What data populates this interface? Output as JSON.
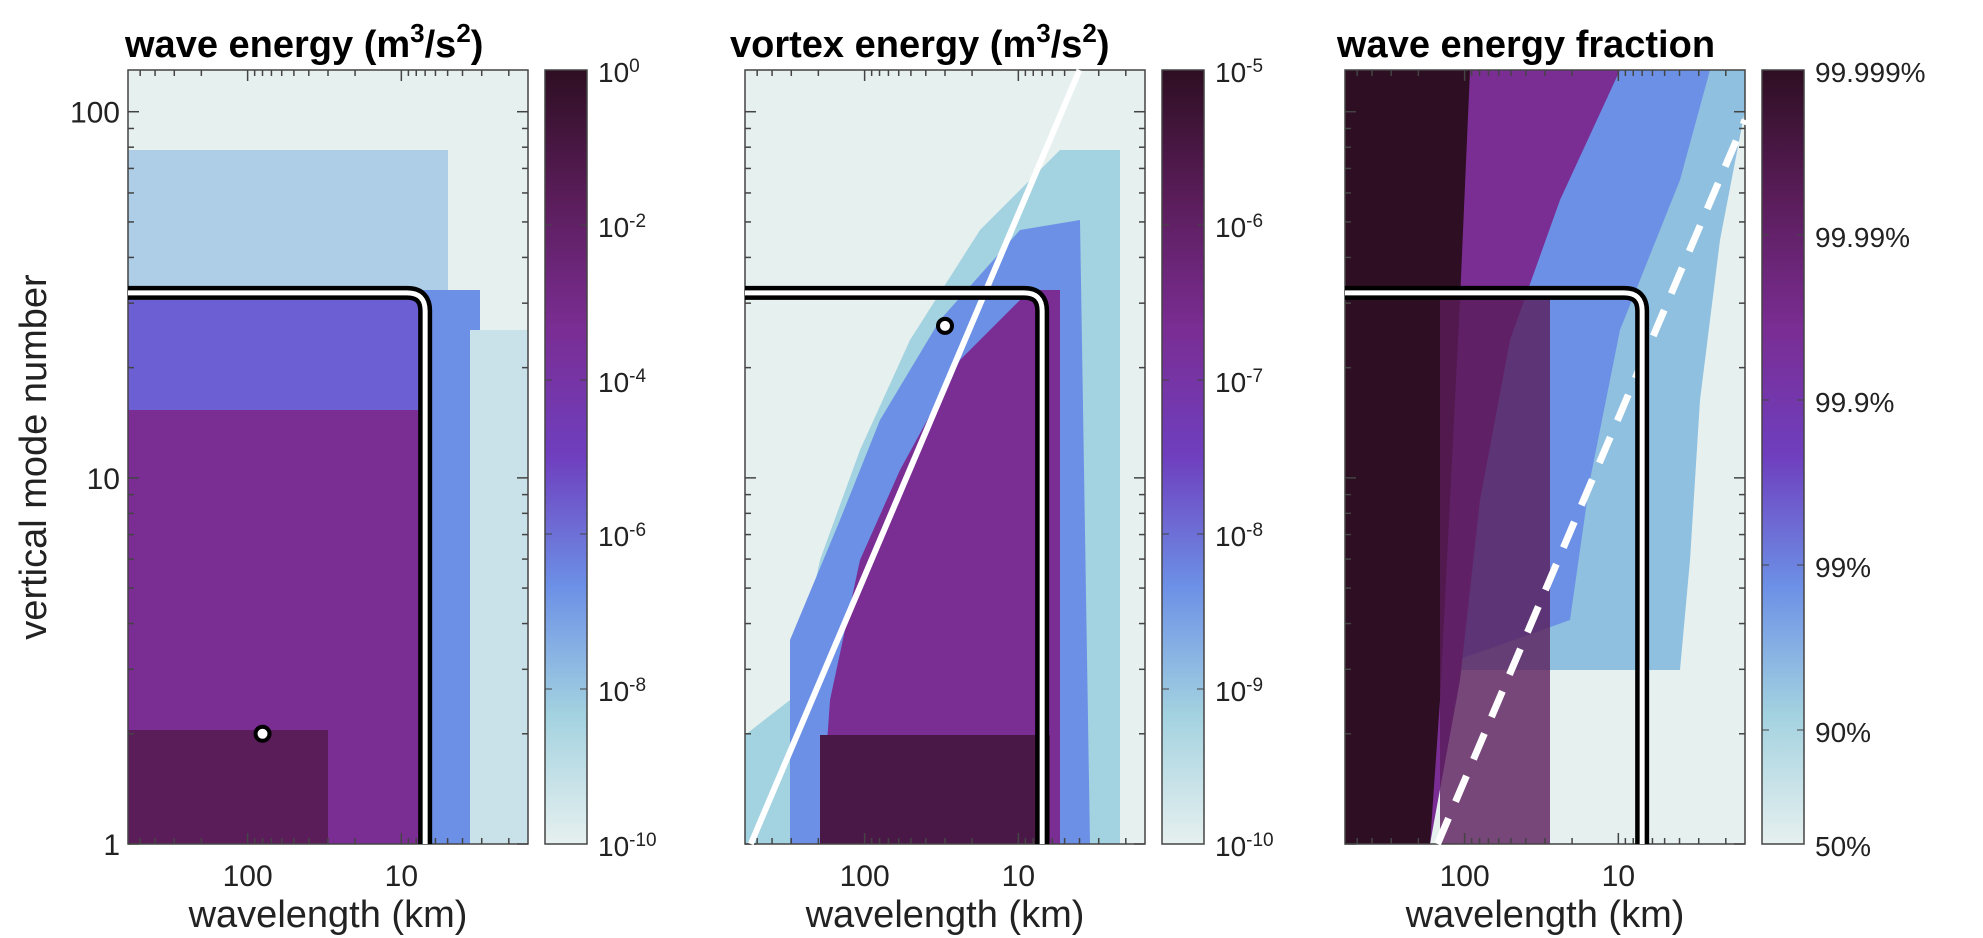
{
  "colors": {
    "colormap": [
      "#e6f0ef",
      "#a3d2e0",
      "#6c90e6",
      "#6f3fbf",
      "#7a2d93",
      "#5a1d5a",
      "#2e0e22"
    ],
    "contour_outer": "#000000",
    "contour_inner": "#ffffff",
    "marker_fill": "#ffffff",
    "marker_edge": "#000000",
    "axes": "#444444"
  },
  "chart_data": [
    {
      "type": "heatmap",
      "title": "wave energy (m",
      "title_sup1": "3",
      "title_mid": "/s",
      "title_sup2": "2",
      "title_end": ")",
      "xlabel": "wavelength (km)",
      "ylabel": "vertical mode number",
      "x_scale": "log",
      "x_reversed": true,
      "xlim_km": [
        600,
        1.5
      ],
      "x_ticks": [
        {
          "value": 100,
          "label": "100"
        },
        {
          "value": 10,
          "label": "10"
        }
      ],
      "y_scale": "log",
      "ylim": [
        1,
        130
      ],
      "y_ticks": [
        {
          "value": 1,
          "label": "1"
        },
        {
          "value": 10,
          "label": "10"
        },
        {
          "value": 100,
          "label": "100"
        }
      ],
      "colorbar": {
        "scale": "log",
        "range": [
          1e-10,
          1
        ],
        "ticks": [
          {
            "base": "10",
            "exp": "0"
          },
          {
            "base": "10",
            "exp": "-2"
          },
          {
            "base": "10",
            "exp": "-4"
          },
          {
            "base": "10",
            "exp": "-6"
          },
          {
            "base": "10",
            "exp": "-8"
          },
          {
            "base": "10",
            "exp": "-10"
          }
        ]
      },
      "cutoff_contour": {
        "mode_max": 32,
        "wavelength_min_km": 7
      },
      "marker": {
        "wavelength_km": 80,
        "mode": 2
      },
      "diagonal_line": null
    },
    {
      "type": "heatmap",
      "title": "vortex energy (m",
      "title_sup1": "3",
      "title_mid": "/s",
      "title_sup2": "2",
      "title_end": ")",
      "xlabel": "wavelength (km)",
      "ylabel": "",
      "x_scale": "log",
      "x_reversed": true,
      "xlim_km": [
        600,
        1.5
      ],
      "x_ticks": [
        {
          "value": 100,
          "label": "100"
        },
        {
          "value": 10,
          "label": "10"
        }
      ],
      "y_scale": "log",
      "ylim": [
        1,
        130
      ],
      "y_ticks": [],
      "colorbar": {
        "scale": "log",
        "range": [
          1e-10,
          1e-05
        ],
        "ticks": [
          {
            "base": "10",
            "exp": "-5"
          },
          {
            "base": "10",
            "exp": "-6"
          },
          {
            "base": "10",
            "exp": "-7"
          },
          {
            "base": "10",
            "exp": "-8"
          },
          {
            "base": "10",
            "exp": "-9"
          },
          {
            "base": "10",
            "exp": "-10"
          }
        ]
      },
      "cutoff_contour": {
        "mode_max": 32,
        "wavelength_min_km": 7
      },
      "marker": {
        "wavelength_km": 30,
        "mode": 26
      },
      "diagonal_line": {
        "style": "solid",
        "from": {
          "wavelength_km": 550,
          "mode": 1
        },
        "to": {
          "wavelength_km": 4,
          "mode": 130
        }
      }
    },
    {
      "type": "heatmap",
      "title": "wave energy fraction",
      "title_sup1": "",
      "title_mid": "",
      "title_sup2": "",
      "title_end": "",
      "xlabel": "wavelength (km)",
      "ylabel": "",
      "x_scale": "log",
      "x_reversed": true,
      "xlim_km": [
        600,
        1.5
      ],
      "x_ticks": [
        {
          "value": 100,
          "label": "100"
        },
        {
          "value": 10,
          "label": "10"
        }
      ],
      "y_scale": "log",
      "ylim": [
        1,
        130
      ],
      "y_ticks": [],
      "colorbar": {
        "scale": "log",
        "range": [
          0.5,
          0.99999
        ],
        "ticks": [
          {
            "label": "99.999%"
          },
          {
            "label": "99.99%"
          },
          {
            "label": "99.9%"
          },
          {
            "label": "99%"
          },
          {
            "label": "90%"
          },
          {
            "label": "50%"
          }
        ]
      },
      "cutoff_contour": {
        "mode_max": 32,
        "wavelength_min_km": 7
      },
      "marker": null,
      "diagonal_line": {
        "style": "dashed",
        "from": {
          "wavelength_km": 150,
          "mode": 1
        },
        "to": {
          "wavelength_km": 1.5,
          "mode": 95
        }
      }
    }
  ]
}
